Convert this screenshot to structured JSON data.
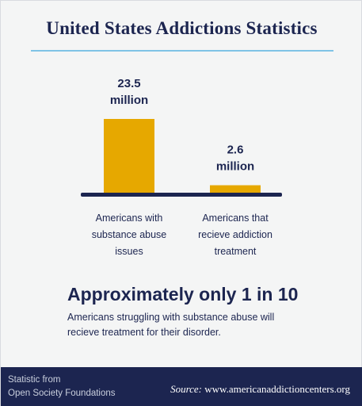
{
  "title": "United States Addictions Statistics",
  "colors": {
    "bar": "#e6a800",
    "baseline": "#1c2550",
    "text": "#1c2550",
    "rule": "#7fc3e6",
    "footer_bg": "#1c2550"
  },
  "chart_data": {
    "type": "bar",
    "categories": [
      "Americans with substance abuse issues",
      "Americans that recieve addiction treatment"
    ],
    "category_lines": [
      [
        "Americans with",
        "substance abuse",
        "issues"
      ],
      [
        "Americans that",
        "recieve addiction",
        "treatment"
      ]
    ],
    "values": [
      23.5,
      2.6
    ],
    "unit": "million",
    "value_labels": [
      [
        "23.5",
        "million"
      ],
      [
        "2.6",
        "million"
      ]
    ],
    "title": "",
    "xlabel": "",
    "ylabel": "",
    "ylim": [
      0,
      25
    ]
  },
  "headline": "Approximately only 1 in 10",
  "subtext": "Americans struggling with substance abuse will recieve treatment for their disorder.",
  "footer": {
    "credit_line1": "Statistic from",
    "credit_line2": "Open Society Foundations",
    "source_label": "Source:",
    "source_url": "www.americanaddictioncenters.org"
  }
}
